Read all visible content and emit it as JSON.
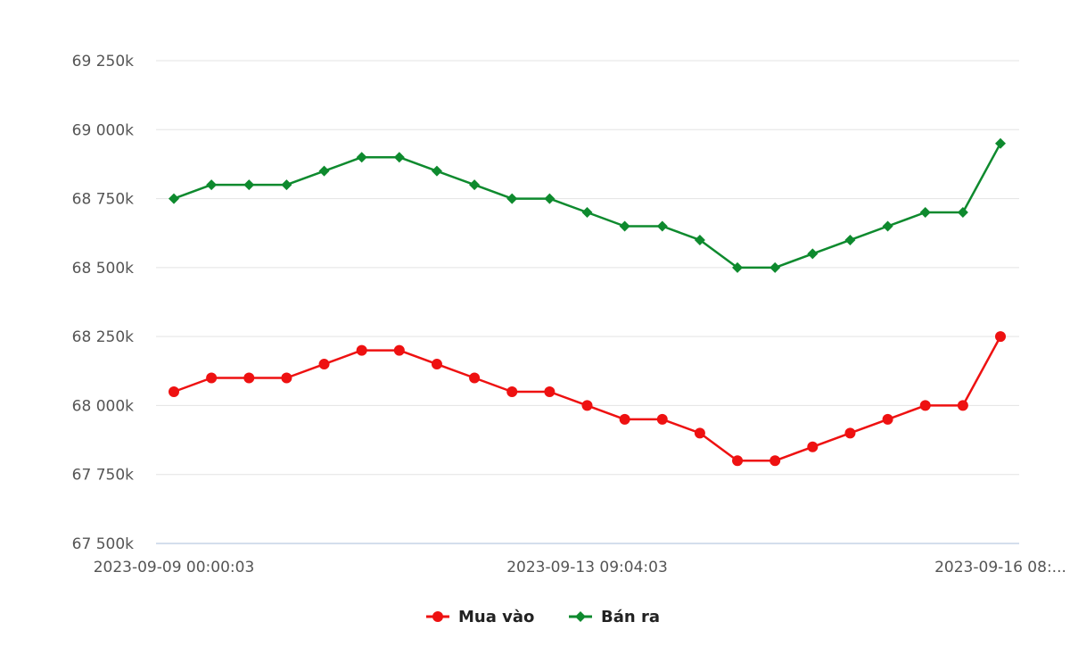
{
  "chart_data": {
    "type": "line",
    "y_tick_labels": [
      "67 500k",
      "67 750k",
      "68 000k",
      "68 250k",
      "68 500k",
      "68 750k",
      "69 000k",
      "69 250k"
    ],
    "y_ticks": [
      67500,
      67750,
      68000,
      68250,
      68500,
      68750,
      69000,
      69250
    ],
    "ylim": [
      67500,
      69250
    ],
    "x_tick_labels": [
      {
        "index": 0,
        "label": "2023-09-09 00:00:03"
      },
      {
        "index": 11,
        "label": "2023-09-13 09:04:03"
      },
      {
        "index": 22,
        "label": "2023-09-16 08:..."
      }
    ],
    "point_count": 23,
    "grid": true,
    "legend_position": "bottom-center",
    "series": [
      {
        "name": "Mua vào",
        "color": "#ee1111",
        "marker": "circle",
        "values": [
          68050,
          68100,
          68100,
          68100,
          68150,
          68200,
          68200,
          68150,
          68100,
          68050,
          68050,
          68000,
          67950,
          67950,
          67900,
          67800,
          67800,
          67850,
          67900,
          67950,
          68000,
          68000,
          68250
        ]
      },
      {
        "name": "Bán ra",
        "color": "#0e8a2e",
        "marker": "diamond",
        "values": [
          68750,
          68800,
          68800,
          68800,
          68850,
          68900,
          68900,
          68850,
          68800,
          68750,
          68750,
          68700,
          68650,
          68650,
          68600,
          68500,
          68500,
          68550,
          68600,
          68650,
          68700,
          68700,
          68950
        ]
      }
    ]
  }
}
